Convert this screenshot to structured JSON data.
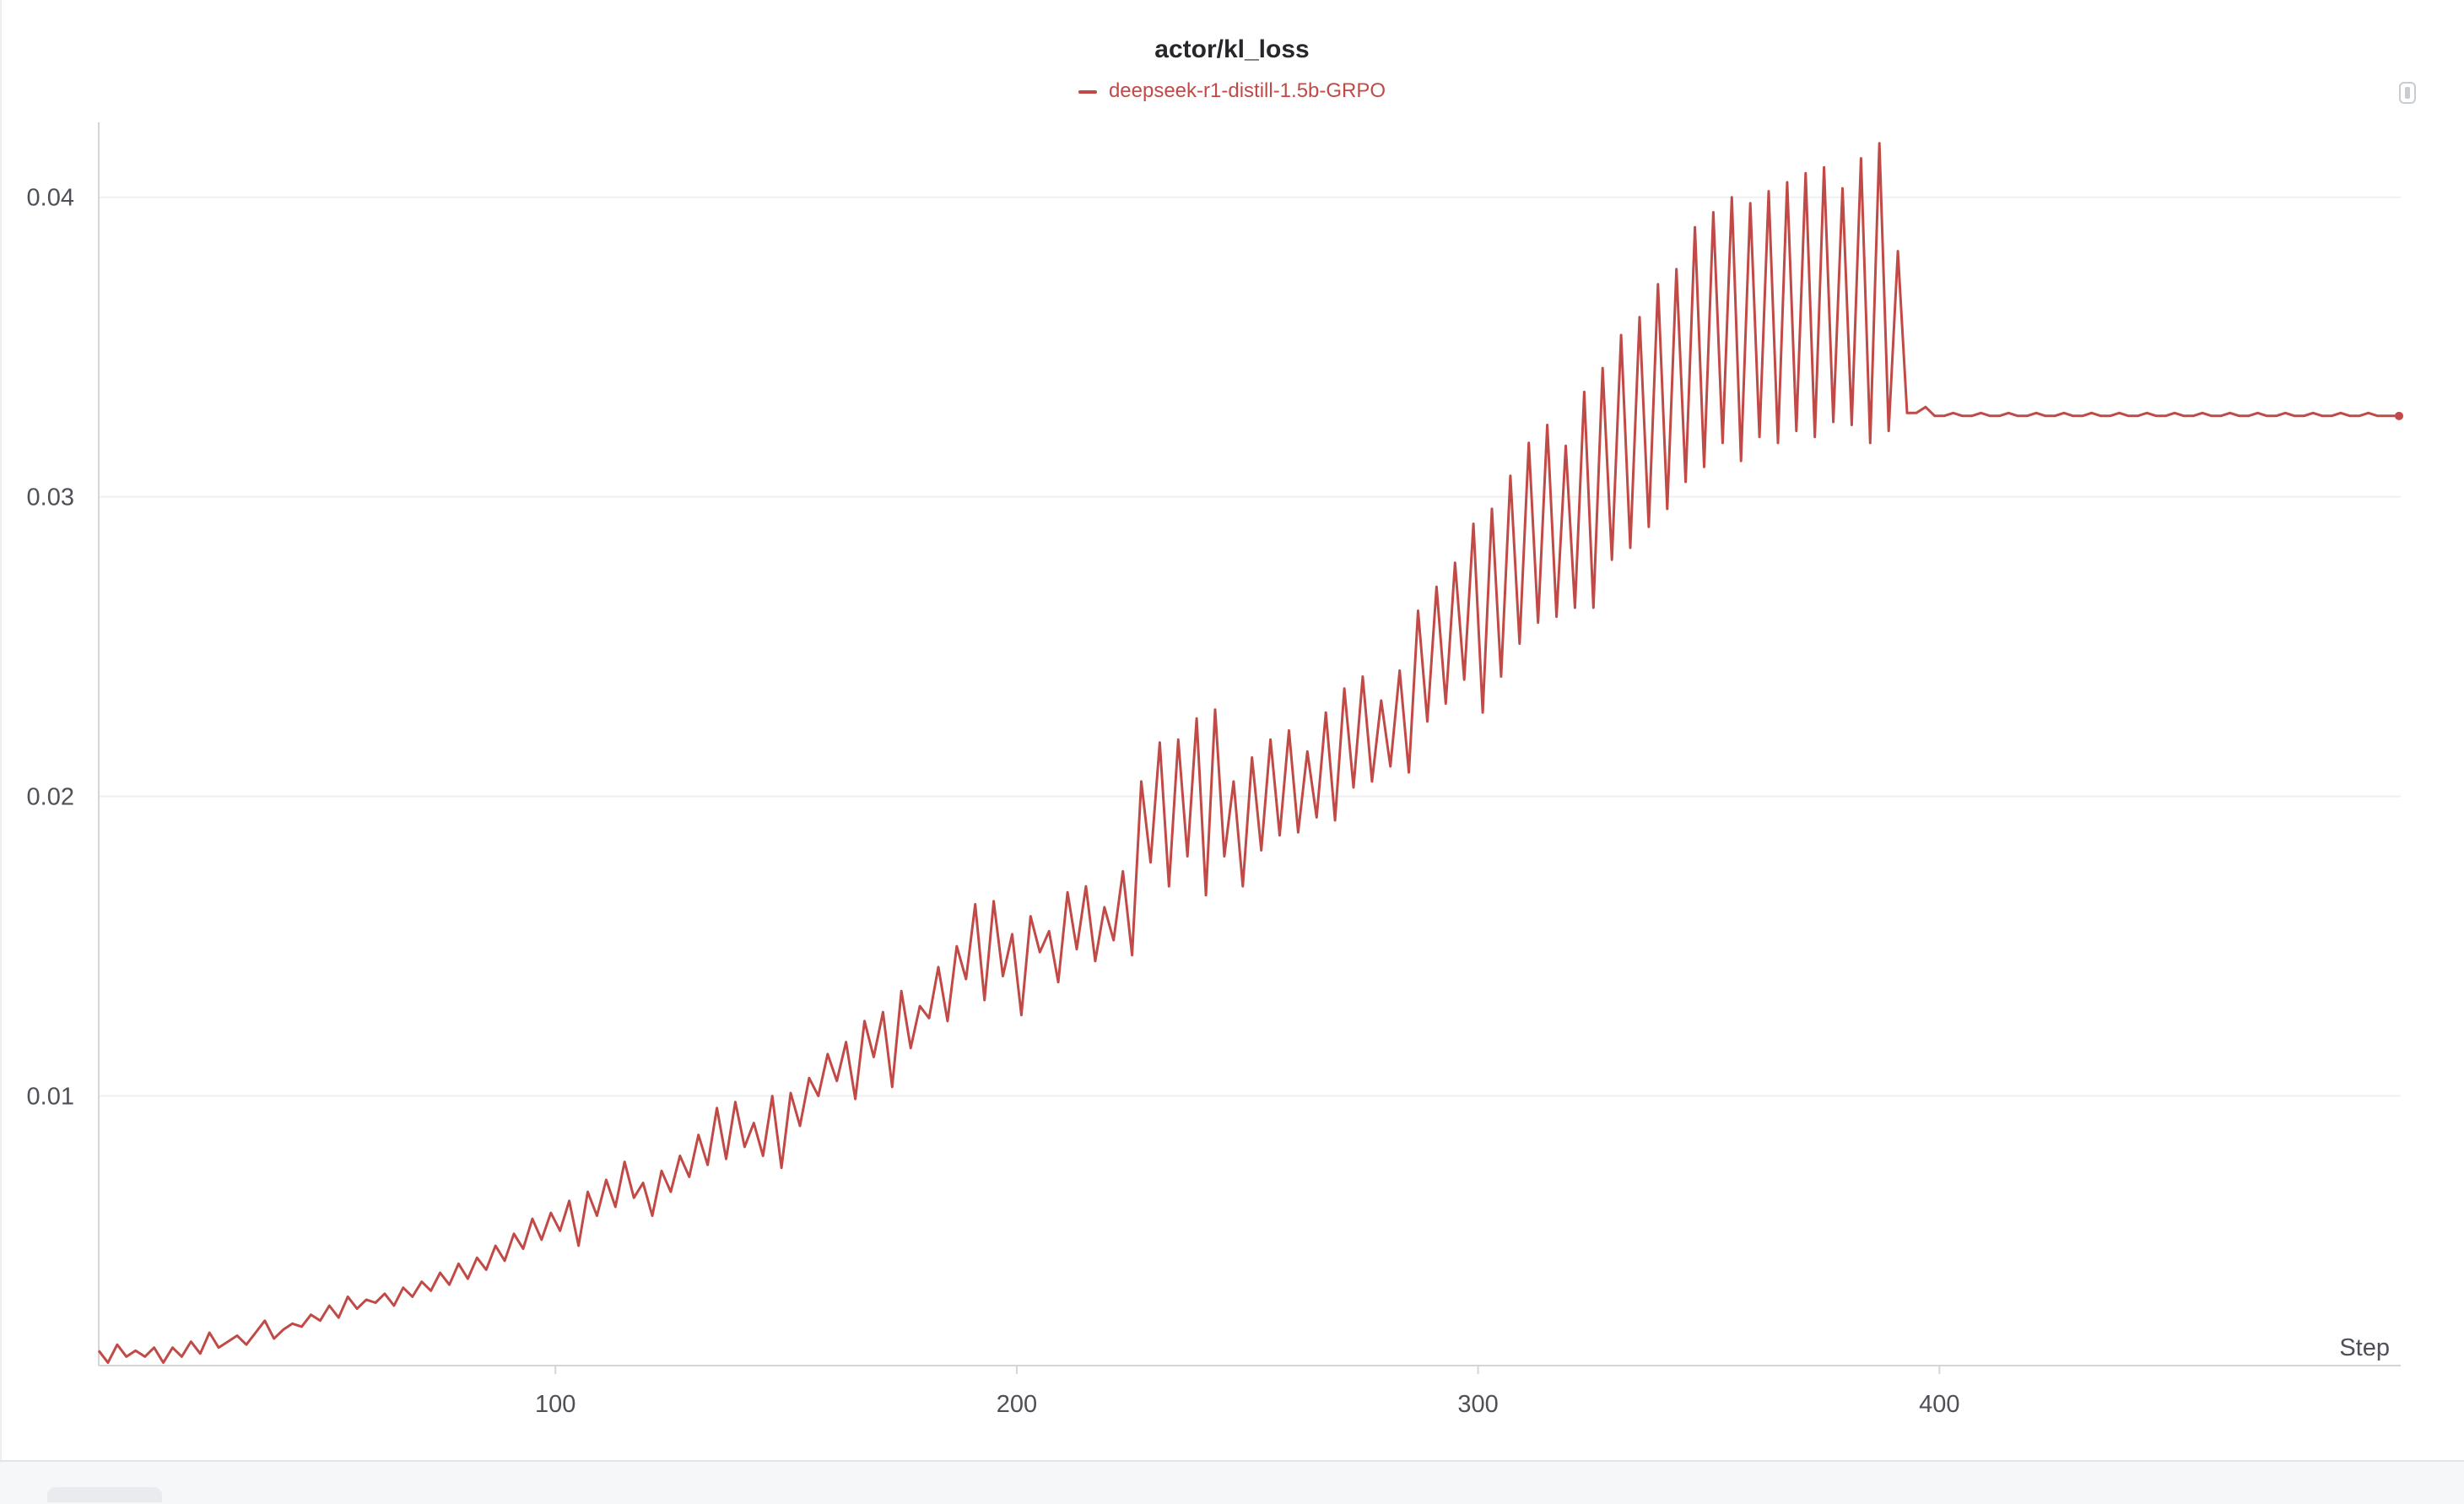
{
  "chart_data": {
    "type": "line",
    "title": "actor/kl_loss",
    "xlabel": "Step",
    "ylabel": "",
    "xlim": [
      1,
      500
    ],
    "ylim": [
      0.001,
      0.0425
    ],
    "x_ticks": [
      100,
      200,
      300,
      400
    ],
    "y_ticks": [
      0.01,
      0.02,
      0.03,
      0.04
    ],
    "grid": "horizontal",
    "legend_position": "top-center",
    "series": [
      {
        "name": "deepseek-r1-distill-1.5b-GRPO",
        "color": "#c14a47",
        "sample_every": 2,
        "x_start": 1,
        "values": [
          0.0015,
          0.0011,
          0.0017,
          0.0013,
          0.0015,
          0.0013,
          0.0016,
          0.0011,
          0.0016,
          0.0013,
          0.0018,
          0.0014,
          0.0021,
          0.0016,
          0.0018,
          0.002,
          0.0017,
          0.0021,
          0.0025,
          0.0019,
          0.0022,
          0.0024,
          0.0023,
          0.0027,
          0.0025,
          0.003,
          0.0026,
          0.0033,
          0.0029,
          0.0032,
          0.0031,
          0.0034,
          0.003,
          0.0036,
          0.0033,
          0.0038,
          0.0035,
          0.0041,
          0.0037,
          0.0044,
          0.0039,
          0.0046,
          0.0042,
          0.005,
          0.0045,
          0.0054,
          0.0049,
          0.0059,
          0.0052,
          0.0061,
          0.0055,
          0.0065,
          0.005,
          0.0068,
          0.006,
          0.0072,
          0.0063,
          0.0078,
          0.0066,
          0.0071,
          0.006,
          0.0075,
          0.0068,
          0.008,
          0.0073,
          0.0087,
          0.0077,
          0.0096,
          0.0079,
          0.0098,
          0.0083,
          0.0091,
          0.008,
          0.01,
          0.0076,
          0.0101,
          0.009,
          0.0106,
          0.01,
          0.0114,
          0.0105,
          0.0118,
          0.0099,
          0.0125,
          0.0113,
          0.0128,
          0.0103,
          0.0135,
          0.0116,
          0.013,
          0.0126,
          0.0143,
          0.0125,
          0.015,
          0.0139,
          0.0164,
          0.0132,
          0.0165,
          0.014,
          0.0154,
          0.0127,
          0.016,
          0.0148,
          0.0155,
          0.0138,
          0.0168,
          0.0149,
          0.017,
          0.0145,
          0.0163,
          0.0152,
          0.0175,
          0.0147,
          0.0205,
          0.0178,
          0.0218,
          0.017,
          0.0219,
          0.018,
          0.0226,
          0.0167,
          0.0229,
          0.018,
          0.0205,
          0.017,
          0.0213,
          0.0182,
          0.0219,
          0.0187,
          0.0222,
          0.0188,
          0.0215,
          0.0193,
          0.0228,
          0.0192,
          0.0236,
          0.0203,
          0.024,
          0.0205,
          0.0232,
          0.021,
          0.0242,
          0.0208,
          0.0262,
          0.0225,
          0.027,
          0.0231,
          0.0278,
          0.0239,
          0.0291,
          0.0228,
          0.0296,
          0.024,
          0.0307,
          0.0251,
          0.0318,
          0.0258,
          0.0324,
          0.026,
          0.0317,
          0.0263,
          0.0335,
          0.0263,
          0.0343,
          0.0279,
          0.0354,
          0.0283,
          0.036,
          0.029,
          0.0371,
          0.0296,
          0.0376,
          0.0305,
          0.039,
          0.031,
          0.0395,
          0.0318,
          0.04,
          0.0312,
          0.0398,
          0.032,
          0.0402,
          0.0318,
          0.0405,
          0.0322,
          0.0408,
          0.032,
          0.041,
          0.0325,
          0.0403,
          0.0324,
          0.0413,
          0.0318,
          0.0418,
          0.0322,
          0.0382,
          0.0328,
          0.0328,
          0.033,
          0.0327,
          0.0327,
          0.0328,
          0.0327,
          0.0327,
          0.0328,
          0.0327,
          0.0327,
          0.0328,
          0.0327,
          0.0327,
          0.0328,
          0.0327,
          0.0327,
          0.0328,
          0.0327,
          0.0327,
          0.0328,
          0.0327,
          0.0327,
          0.0328,
          0.0327,
          0.0327,
          0.0328,
          0.0327,
          0.0327,
          0.0328,
          0.0327,
          0.0327,
          0.0328,
          0.0327,
          0.0327,
          0.0328,
          0.0327,
          0.0327,
          0.0328,
          0.0327,
          0.0327,
          0.0328,
          0.0327,
          0.0327,
          0.0328,
          0.0327,
          0.0327,
          0.0328,
          0.0327,
          0.0327,
          0.0328,
          0.0327,
          0.0327,
          0.0327
        ]
      }
    ]
  }
}
